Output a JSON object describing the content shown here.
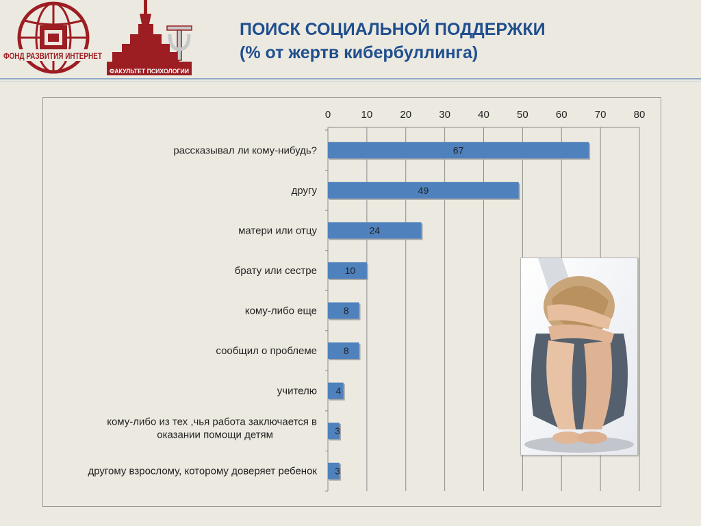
{
  "header": {
    "title": "ПОИСК СОЦИАЛЬНОЙ ПОДДЕРЖКИ",
    "subtitle": "(% от жертв кибербуллинга)"
  },
  "logos": {
    "left_text": "ФОНД РАЗВИТИЯ ИНТЕРНЕТ",
    "right_text": "ФАКУЛЬТЕТ ПСИХОЛОГИИ",
    "color": "#9c1d22"
  },
  "chart_data": {
    "type": "bar",
    "orientation": "horizontal",
    "categories": [
      "рассказывал ли кому-нибудь?",
      "другу",
      "матери или отцу",
      "брату или сестре",
      "кому-либо еще",
      "сообщил о проблеме",
      "учителю",
      "кому-либо из тех ,чья работа заключается в\nоказании помощи детям",
      "другому взрослому, которому доверяет ребенок"
    ],
    "values": [
      67,
      49,
      24,
      10,
      8,
      8,
      4,
      3,
      3
    ],
    "xlim": [
      0,
      80
    ],
    "xticks": [
      0,
      10,
      20,
      30,
      40,
      50,
      60,
      70,
      80
    ],
    "axis_position": "top",
    "grid": true,
    "bar_color": "#4f81bd",
    "data_labels": true
  },
  "photo": {
    "icon": "child-hugging-knees-photo"
  }
}
